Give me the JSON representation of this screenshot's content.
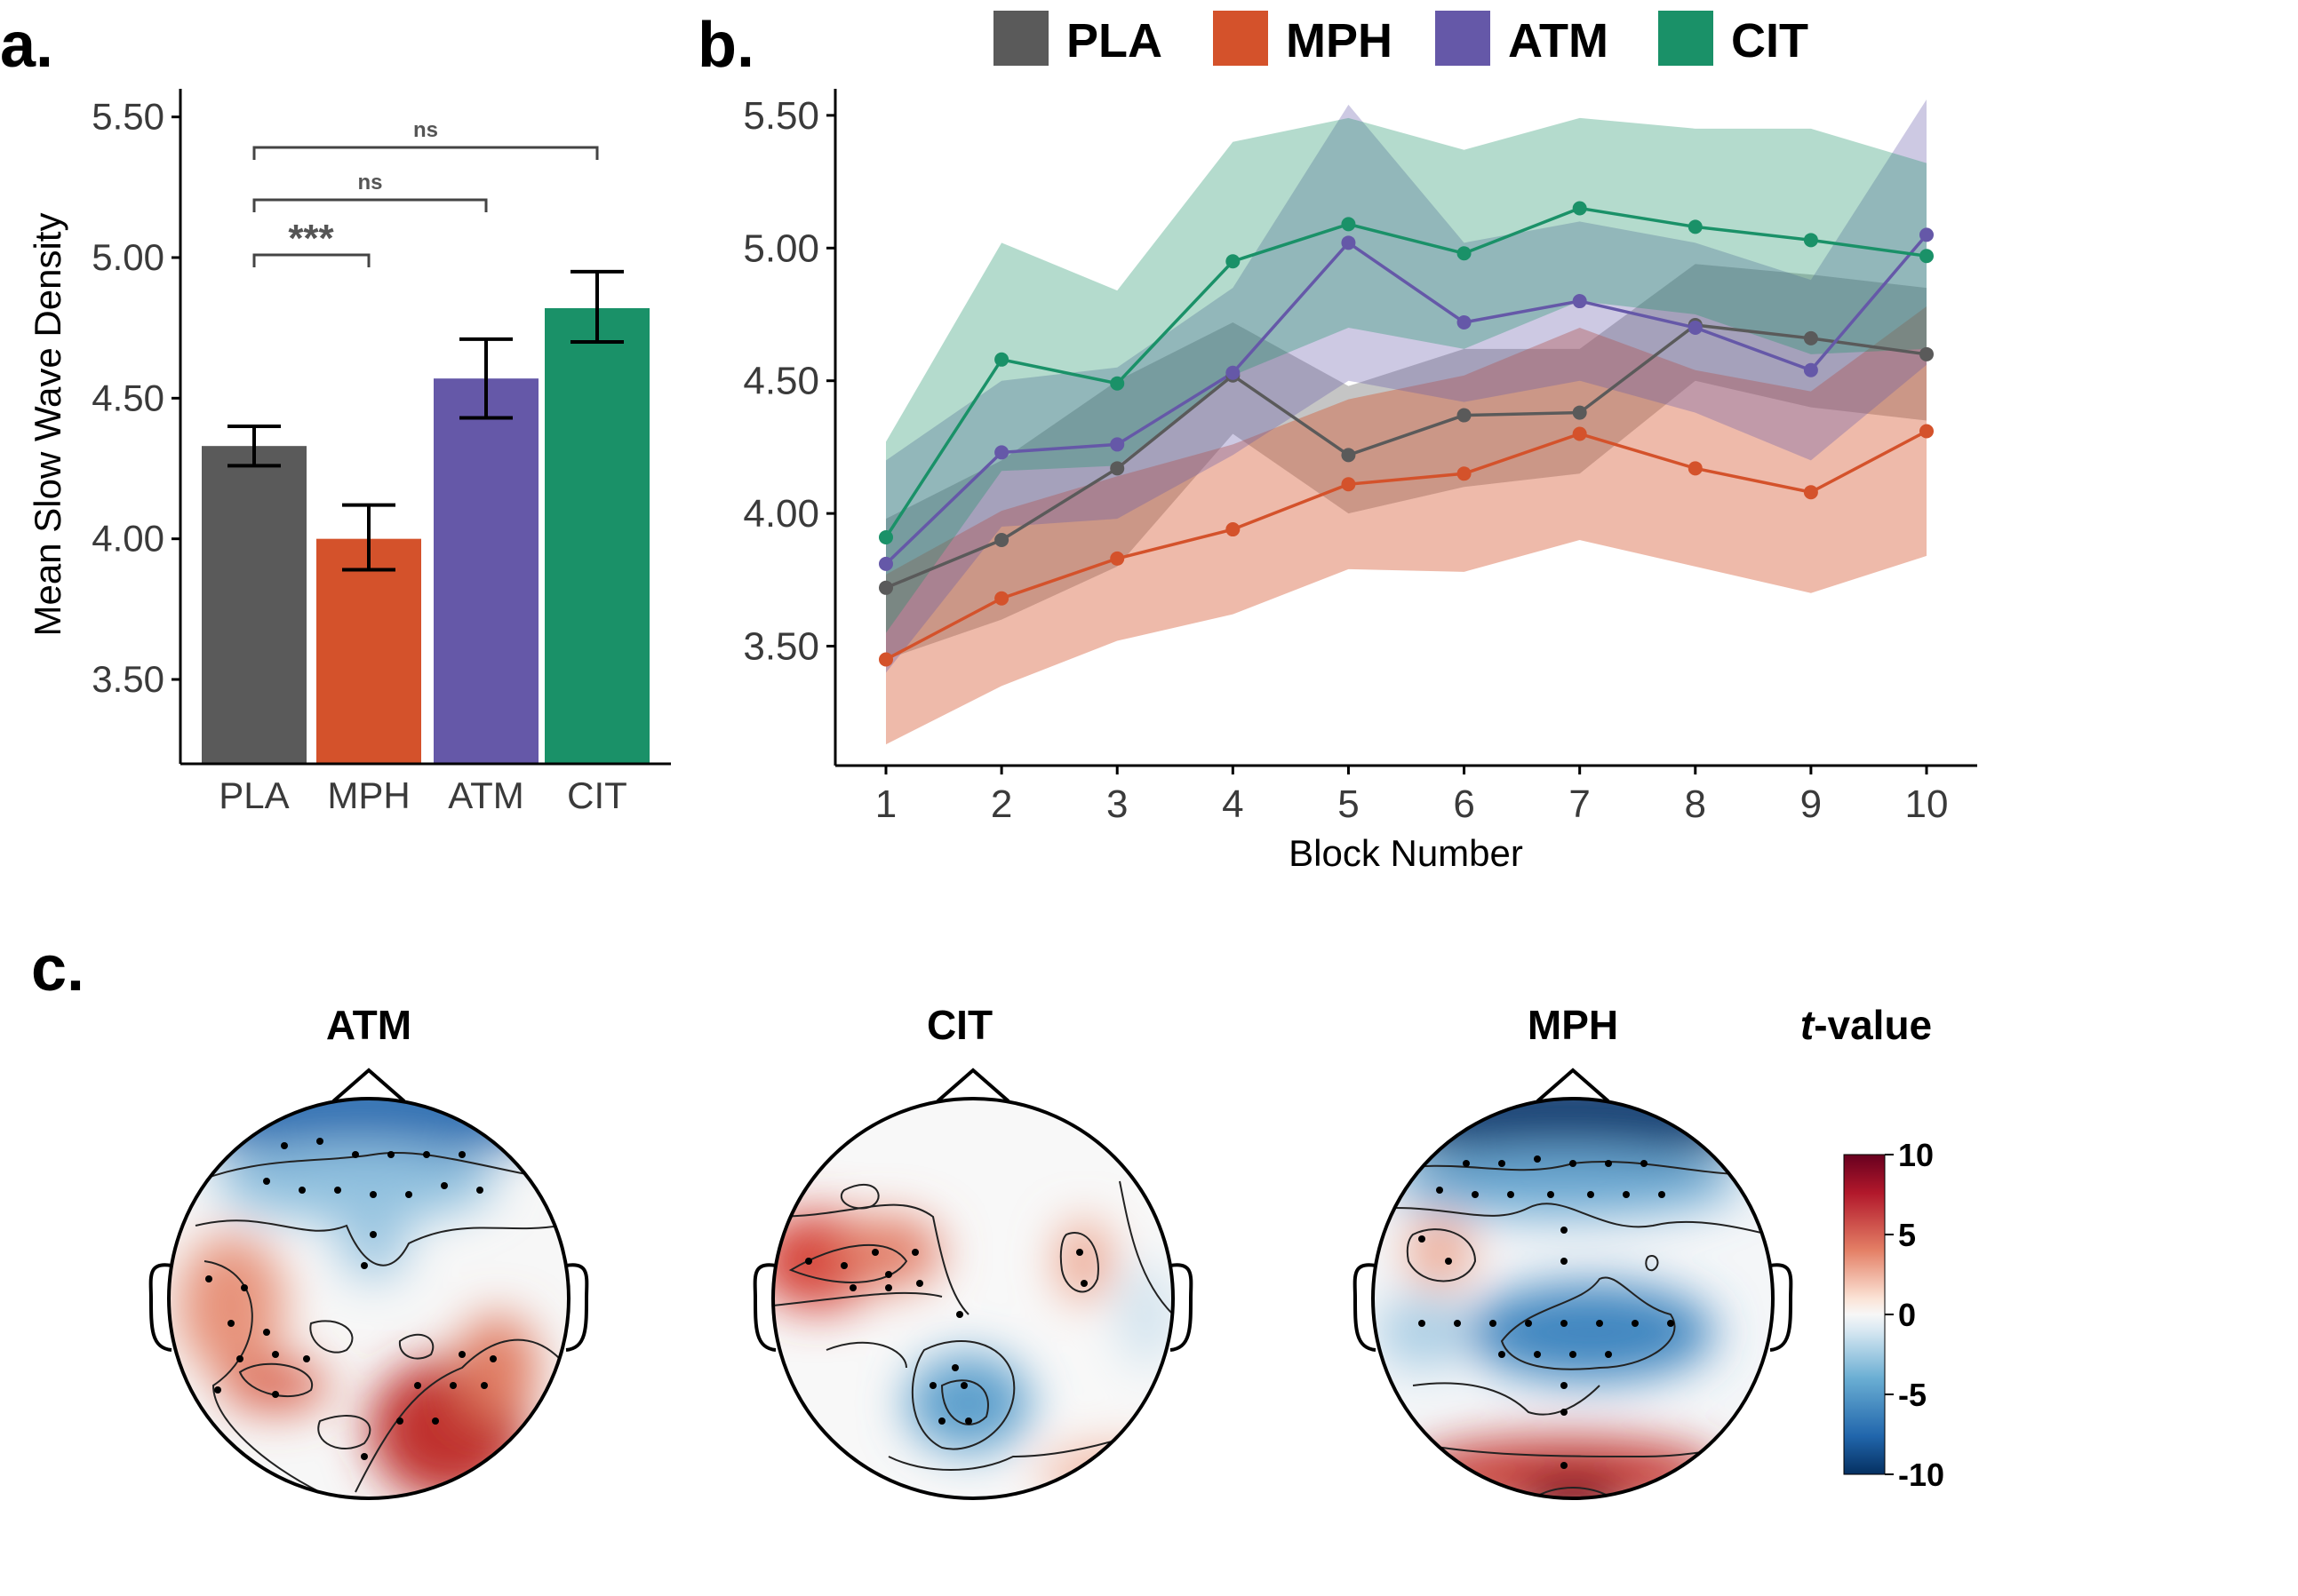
{
  "panel_labels": {
    "a": "a.",
    "b": "b.",
    "c": "c."
  },
  "colors": {
    "PLA": "#5a5a5a",
    "MPH": "#d4522b",
    "ATM": "#6558a8",
    "CIT": "#1a9168",
    "axis": "#000000",
    "tick_text": "#3a3a3a",
    "bracket": "#444444"
  },
  "legend": [
    "PLA",
    "MPH",
    "ATM",
    "CIT"
  ],
  "chart_data": [
    {
      "type": "bar",
      "panel": "a",
      "categories": [
        "PLA",
        "MPH",
        "ATM",
        "CIT"
      ],
      "values": [
        4.33,
        4.0,
        4.57,
        4.82
      ],
      "error_low": [
        4.26,
        3.89,
        4.43,
        4.7
      ],
      "error_high": [
        4.4,
        4.12,
        4.71,
        4.95
      ],
      "ylabel": "Mean Slow Wave Density",
      "xlabel": "",
      "ylim": [
        3.2,
        5.6
      ],
      "yticks": [
        "3.50",
        "4.00",
        "4.50",
        "5.00",
        "5.50"
      ],
      "significance": [
        {
          "from": "PLA",
          "to": "MPH",
          "label": "***"
        },
        {
          "from": "PLA",
          "to": "ATM",
          "label": "ns"
        },
        {
          "from": "PLA",
          "to": "CIT",
          "label": "ns"
        }
      ]
    },
    {
      "type": "line",
      "panel": "b",
      "x": [
        1,
        2,
        3,
        4,
        5,
        6,
        7,
        8,
        9,
        10
      ],
      "xlabel": "Block Number",
      "ylabel": "",
      "ylim": [
        3.05,
        5.6
      ],
      "yticks": [
        "3.50",
        "4.00",
        "4.50",
        "5.00",
        "5.50"
      ],
      "series": [
        {
          "name": "PLA",
          "values": [
            3.72,
            3.9,
            4.17,
            4.52,
            4.22,
            4.37,
            4.38,
            4.71,
            4.66,
            4.6
          ],
          "lower": [
            3.45,
            3.6,
            3.8,
            4.3,
            4.0,
            4.1,
            4.15,
            4.5,
            4.4,
            4.35
          ],
          "upper": [
            3.98,
            4.2,
            4.5,
            4.72,
            4.48,
            4.62,
            4.62,
            4.94,
            4.9,
            4.85
          ]
        },
        {
          "name": "MPH",
          "values": [
            3.45,
            3.68,
            3.83,
            3.94,
            4.11,
            4.15,
            4.3,
            4.17,
            4.08,
            4.31
          ],
          "lower": [
            3.13,
            3.35,
            3.52,
            3.62,
            3.79,
            3.78,
            3.9,
            3.8,
            3.7,
            3.84
          ],
          "upper": [
            3.77,
            4.01,
            4.14,
            4.26,
            4.43,
            4.52,
            4.7,
            4.54,
            4.46,
            4.78
          ]
        },
        {
          "name": "ATM",
          "values": [
            3.81,
            4.23,
            4.26,
            4.53,
            5.02,
            4.72,
            4.8,
            4.7,
            4.54,
            5.05
          ],
          "lower": [
            3.4,
            3.95,
            3.98,
            4.22,
            4.5,
            4.42,
            4.5,
            4.38,
            4.2,
            4.56
          ],
          "upper": [
            4.2,
            4.5,
            4.55,
            4.85,
            5.54,
            5.02,
            5.1,
            5.02,
            4.88,
            5.56
          ]
        },
        {
          "name": "CIT",
          "values": [
            3.91,
            4.58,
            4.49,
            4.95,
            5.09,
            4.98,
            5.15,
            5.08,
            5.03,
            4.97
          ],
          "lower": [
            3.55,
            4.16,
            4.18,
            4.52,
            4.7,
            4.62,
            4.8,
            4.75,
            4.6,
            4.62
          ],
          "upper": [
            4.27,
            5.02,
            4.84,
            5.4,
            5.49,
            5.37,
            5.49,
            5.45,
            5.45,
            5.32
          ]
        }
      ]
    },
    {
      "type": "heatmap",
      "panel": "c",
      "title": "",
      "maps": [
        {
          "title": "ATM"
        },
        {
          "title": "CIT"
        },
        {
          "title": "MPH"
        }
      ],
      "colorbar": {
        "title_italic": "t",
        "title_rest": "-value",
        "ticks": [
          "10",
          "5",
          "0",
          "-5",
          "-10"
        ],
        "range": [
          -10,
          10
        ]
      }
    }
  ]
}
